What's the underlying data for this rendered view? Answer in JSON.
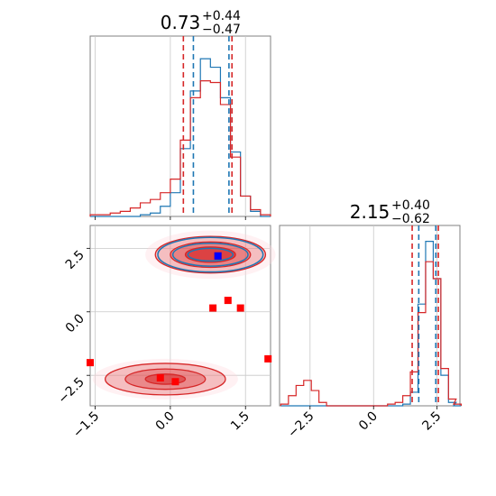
{
  "chart_data": {
    "type": "corner",
    "parameters": [
      {
        "title_value": "0.73",
        "title_plus": "+0.44",
        "title_minus": "−0.47",
        "range": [
          -1.6,
          2.0
        ],
        "ticks": [
          -1.5,
          0.0,
          1.5
        ],
        "tick_labels": [
          "−1.5",
          "0.0",
          "1.5"
        ]
      },
      {
        "title_value": "2.15",
        "title_plus": "+0.40",
        "title_minus": "−0.62",
        "range": [
          -3.7,
          3.4
        ],
        "ticks": [
          -2.5,
          0.0,
          2.5
        ],
        "tick_labels": [
          "−2.5",
          "0.0",
          "2.5"
        ]
      }
    ],
    "colors": {
      "blue": "#1f77b4",
      "red": "#d62728",
      "marker_red": "#ff0000",
      "marker_blue": "#0000ff"
    },
    "quantile_lines": {
      "param1": {
        "blue": [
          0.46,
          1.17
        ],
        "red": [
          0.26,
          1.23
        ]
      },
      "param2": {
        "blue": [
          1.78,
          2.45
        ],
        "red": [
          1.52,
          2.55
        ]
      }
    },
    "hist_param1": {
      "bin_centers": [
        -1.5,
        -1.3,
        -1.1,
        -0.9,
        -0.7,
        -0.5,
        -0.3,
        -0.1,
        0.1,
        0.3,
        0.5,
        0.7,
        0.9,
        1.1,
        1.3,
        1.5,
        1.7,
        1.9
      ],
      "blue": [
        0.0,
        0.0,
        0.0,
        0.0,
        0.0,
        0.01,
        0.02,
        0.06,
        0.14,
        0.4,
        0.74,
        0.93,
        0.88,
        0.7,
        0.38,
        0.12,
        0.03,
        0.0
      ],
      "red": [
        0.01,
        0.01,
        0.02,
        0.03,
        0.05,
        0.08,
        0.1,
        0.14,
        0.22,
        0.45,
        0.7,
        0.8,
        0.79,
        0.66,
        0.35,
        0.12,
        0.04,
        0.01
      ]
    },
    "hist_param2": {
      "bin_centers": [
        -3.5,
        -3.2,
        -2.9,
        -2.6,
        -2.3,
        -2.0,
        -1.7,
        -1.4,
        -1.1,
        -0.8,
        -0.5,
        -0.2,
        0.1,
        0.4,
        0.7,
        1.0,
        1.3,
        1.6,
        1.9,
        2.2,
        2.5,
        2.8,
        3.1,
        3.3
      ],
      "blue": [
        0,
        0,
        0,
        0,
        0,
        0,
        0,
        0,
        0,
        0,
        0,
        0,
        0,
        0,
        0,
        0,
        0.01,
        0.08,
        0.6,
        0.97,
        0.75,
        0.18,
        0.02,
        0.0
      ],
      "red": [
        0.01,
        0.06,
        0.12,
        0.15,
        0.09,
        0.02,
        0.0,
        0.0,
        0.0,
        0.0,
        0.0,
        0.0,
        0.0,
        0.0,
        0.01,
        0.02,
        0.06,
        0.2,
        0.55,
        0.85,
        0.75,
        0.22,
        0.04,
        0.01
      ]
    },
    "markers_red": [
      [
        -1.6,
        -2.0
      ],
      [
        0.85,
        0.15
      ],
      [
        1.15,
        0.45
      ],
      [
        1.4,
        0.15
      ],
      [
        1.95,
        -1.85
      ],
      [
        -0.2,
        -2.6
      ],
      [
        0.1,
        -2.75
      ],
      [
        0.95,
        2.2
      ]
    ],
    "marker_blue": [
      0.95,
      2.2
    ],
    "contours": {
      "upper_center": [
        0.8,
        2.25
      ],
      "lower_center": [
        -0.1,
        -2.65
      ],
      "blue_upper_radii": [
        [
          1.05,
          0.68
        ],
        [
          0.75,
          0.45
        ],
        [
          0.45,
          0.25
        ]
      ],
      "red_upper_radii": [
        [
          1.1,
          0.72
        ],
        [
          0.8,
          0.5
        ],
        [
          0.5,
          0.3
        ]
      ],
      "red_lower_radii": [
        [
          1.2,
          0.62
        ],
        [
          0.8,
          0.4
        ],
        [
          0.4,
          0.2
        ]
      ]
    }
  }
}
